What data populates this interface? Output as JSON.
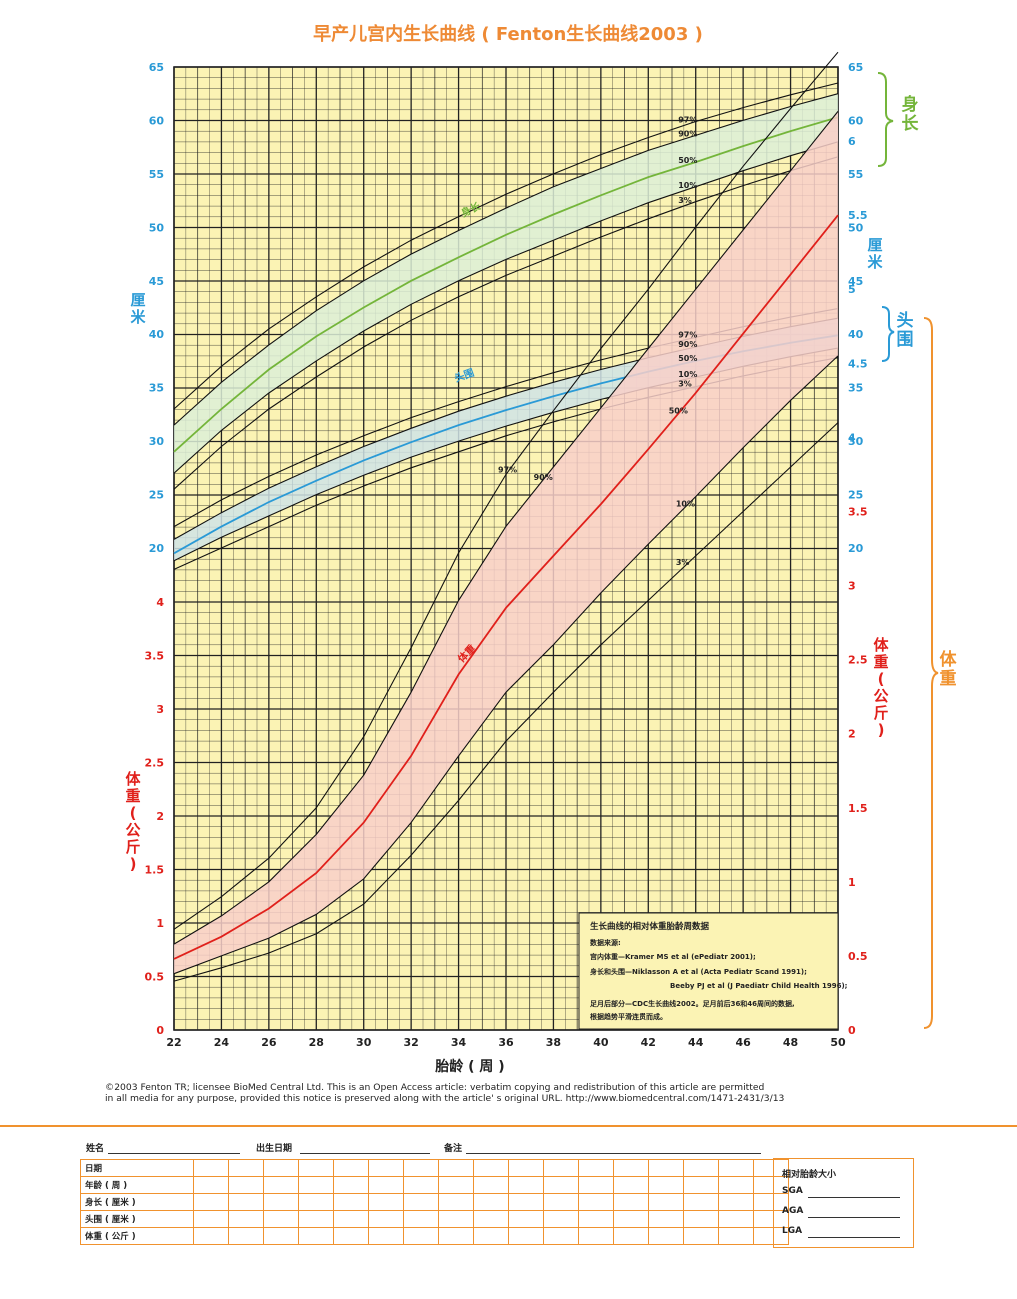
{
  "title": "早产儿宫内生长曲线 ( Fenton生长曲线2003 )",
  "colors": {
    "title": "#ee8a35",
    "grid_bg": "#fbf3b4",
    "length": "#74b53a",
    "head": "#2a9ad6",
    "weight": "#e0201b",
    "orange": "#f0922e",
    "length_band": "#dcefd7",
    "head_band": "#cfe3e6",
    "weight_band": "#f8cfc9"
  },
  "chart_data": {
    "type": "line",
    "xlabel": "胎龄 ( 周 )",
    "x_ticks": [
      22,
      24,
      26,
      28,
      30,
      32,
      34,
      36,
      38,
      40,
      42,
      44,
      46,
      48,
      50
    ],
    "x_range": [
      22,
      50
    ],
    "upper_axis": {
      "unit": "厘米",
      "ticks": [
        20,
        25,
        30,
        35,
        40,
        45,
        50,
        55,
        60,
        65
      ],
      "range": [
        15.5,
        65
      ]
    },
    "lower_axis": {
      "unit": "体重(公斤)",
      "ticks": [
        0,
        0.5,
        1,
        1.5,
        2,
        2.5,
        3,
        3.5,
        4
      ],
      "range": [
        0,
        4.2
      ]
    },
    "right_weight_ticks": [
      0,
      0.5,
      1,
      1.5,
      2,
      2.5,
      3,
      3.5,
      4,
      4.5,
      5,
      5.5,
      6
    ],
    "right_weight_range": [
      0,
      6.5
    ],
    "section_labels": {
      "length": "身长",
      "head": "头围",
      "weight": "体重",
      "cm_left": "厘米",
      "cm_right": "厘米",
      "kg_left": "体重(公斤)",
      "kg_right": "体重(公斤)"
    },
    "percentile_labels": [
      "97%",
      "90%",
      "50%",
      "10%",
      "3%"
    ],
    "curve_labels": {
      "length": "身长",
      "head": "头围",
      "weight": "体重"
    },
    "series": [
      {
        "name": "length",
        "x": [
          22,
          24,
          26,
          28,
          30,
          32,
          34,
          36,
          38,
          40,
          42,
          44,
          46,
          48,
          50
        ],
        "p3": [
          25.5,
          29.5,
          33,
          36,
          38.8,
          41.3,
          43.5,
          45.5,
          47.3,
          49.1,
          50.8,
          52.4,
          53.9,
          55.3,
          56.6
        ],
        "p10": [
          27,
          31,
          34.5,
          37.5,
          40.3,
          42.8,
          45,
          47,
          48.8,
          50.6,
          52.3,
          53.8,
          55.3,
          56.7,
          58
        ],
        "p50": [
          29,
          33,
          36.7,
          39.8,
          42.5,
          45,
          47.2,
          49.3,
          51.2,
          53,
          54.7,
          56.1,
          57.6,
          59,
          60.3
        ],
        "p90": [
          31.5,
          35.5,
          39,
          42.2,
          45,
          47.5,
          49.7,
          51.8,
          53.8,
          55.5,
          57.2,
          58.6,
          60,
          61.3,
          62.5
        ],
        "p97": [
          33,
          37,
          40.5,
          43.5,
          46.3,
          48.8,
          51,
          53.1,
          55,
          56.8,
          58.4,
          59.9,
          61.2,
          62.4,
          63.5
        ]
      },
      {
        "name": "head",
        "x": [
          22,
          24,
          26,
          28,
          30,
          32,
          34,
          36,
          38,
          40,
          42,
          44,
          46,
          48,
          50
        ],
        "p3": [
          18,
          20,
          22,
          24,
          25.8,
          27.5,
          29,
          30.5,
          31.8,
          33,
          34.1,
          35.1,
          36.1,
          37,
          37.8
        ],
        "p10": [
          18.8,
          21,
          23,
          25,
          26.8,
          28.5,
          30,
          31.4,
          32.7,
          33.9,
          35,
          36,
          37,
          37.9,
          38.7
        ],
        "p50": [
          19.5,
          22,
          24.3,
          26.3,
          28.2,
          29.9,
          31.5,
          32.9,
          34.2,
          35.4,
          36.5,
          37.5,
          38.4,
          39.2,
          39.9
        ],
        "p90": [
          20.8,
          23.3,
          25.6,
          27.6,
          29.5,
          31.2,
          32.8,
          34.2,
          35.5,
          36.7,
          37.8,
          38.8,
          39.8,
          40.7,
          41.5
        ],
        "p97": [
          22,
          24.5,
          26.7,
          28.7,
          30.5,
          32.2,
          33.7,
          35.1,
          36.4,
          37.6,
          38.7,
          39.7,
          40.7,
          41.6,
          42.4
        ]
      },
      {
        "name": "weight",
        "x": [
          22,
          24,
          26,
          28,
          30,
          32,
          34,
          36,
          38,
          40,
          42,
          44,
          46,
          48,
          50
        ],
        "p3": [
          0.33,
          0.42,
          0.52,
          0.65,
          0.85,
          1.18,
          1.55,
          1.95,
          2.28,
          2.6,
          2.9,
          3.2,
          3.5,
          3.8,
          4.1
        ],
        "p10": [
          0.38,
          0.5,
          0.62,
          0.78,
          1.02,
          1.4,
          1.85,
          2.28,
          2.6,
          2.95,
          3.28,
          3.6,
          3.93,
          4.25,
          4.55
        ],
        "p50": [
          0.48,
          0.63,
          0.82,
          1.06,
          1.4,
          1.85,
          2.4,
          2.85,
          3.2,
          3.55,
          3.92,
          4.3,
          4.7,
          5.1,
          5.5
        ],
        "p90": [
          0.58,
          0.77,
          1.0,
          1.32,
          1.72,
          2.28,
          2.9,
          3.4,
          3.8,
          4.2,
          4.6,
          5.0,
          5.4,
          5.8,
          6.2
        ],
        "p97": [
          0.68,
          0.9,
          1.16,
          1.5,
          1.98,
          2.58,
          3.22,
          3.75,
          4.18,
          4.6,
          5.0,
          5.42,
          5.83,
          6.22,
          6.6
        ]
      }
    ]
  },
  "info_box": {
    "title": "生长曲线的相对体重胎龄周数据",
    "source_label": "数据来源:",
    "line1": "宫内体重—Kramer MS et al (ePediatr 2001);",
    "line2": "身长和头围—Niklasson A et al (Acta Pediatr Scand 1991);",
    "line3": "Beeby PJ et al (J Paediatr Child Health 1996);",
    "line4": "足月后部分—CDC生长曲线2002。足月前后36和46周间的数据,",
    "line5": "根据趋势平滑连贯而成。"
  },
  "copyright": {
    "line1": "©2003 Fenton TR; licensee BioMed Central Ltd. This is an Open Access article: verbatim copying and redistribution of this article are permitted",
    "line2": "in all media for any purpose, provided this notice is preserved along with the article' s original URL. http://www.biomedcentral.com/1471-2431/3/13"
  },
  "form": {
    "name_label": "姓名",
    "dob_label": "出生日期",
    "notes_label": "备注",
    "rows": [
      "日期",
      "年龄 ( 周 )",
      "身长 ( 厘米 )",
      "头围 ( 厘米 )",
      "体重 ( 公斤 )"
    ],
    "size_title": "相对胎龄大小",
    "sga": "SGA",
    "aga": "AGA",
    "lga": "LGA"
  }
}
